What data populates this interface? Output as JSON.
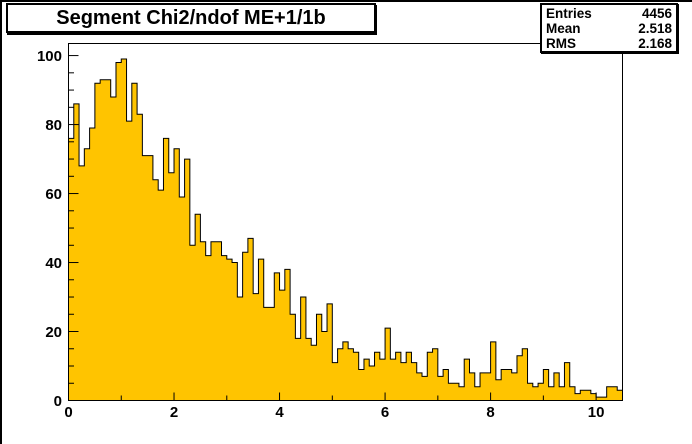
{
  "stats": {
    "rows": [
      {
        "label": "Entries",
        "value": "4456"
      },
      {
        "label": "Mean",
        "value": "2.518"
      },
      {
        "label": "RMS",
        "value": "2.168"
      }
    ]
  },
  "chart_data": {
    "type": "bar",
    "title": "Segment Chi2/ndof ME+1/1b",
    "xlabel": "",
    "ylabel": "",
    "x_start": 0,
    "bin_width": 0.1,
    "n_bins": 105,
    "xlim": [
      0,
      10.5
    ],
    "ylim": [
      0,
      103.5
    ],
    "x_tick_values": [
      0,
      2,
      4,
      6,
      8,
      10
    ],
    "x_tick_labels": [
      "0",
      "2",
      "4",
      "6",
      "8",
      "10"
    ],
    "x_minor_tick_step": 1,
    "y_tick_values": [
      0,
      20,
      40,
      60,
      80,
      100
    ],
    "y_tick_labels": [
      "0",
      "20",
      "40",
      "60",
      "80",
      "100"
    ],
    "y_minor_tick_step": 5,
    "grid": false,
    "legend_position": "none",
    "fill_color": "#ffc400",
    "line_color": "#000000",
    "frame_color": "#ffffff",
    "values": [
      76,
      86,
      68,
      73,
      79,
      92,
      93,
      93,
      88,
      98,
      99,
      81,
      92,
      83,
      71,
      71,
      64,
      61,
      76,
      66,
      73,
      59,
      70,
      45,
      54,
      46,
      42,
      46,
      46,
      42,
      41,
      40,
      30,
      43,
      47,
      31,
      41,
      27,
      27,
      37,
      32,
      38,
      25,
      18,
      30,
      18,
      16,
      25,
      20,
      28,
      11,
      15,
      17,
      15,
      14,
      9,
      12,
      10,
      14,
      12,
      21,
      12,
      14,
      11,
      14,
      11,
      8,
      7,
      14,
      15,
      7,
      9,
      5,
      5,
      4,
      12,
      8,
      4,
      8,
      8,
      17,
      6,
      9,
      9,
      8,
      13,
      15,
      5,
      4,
      5,
      9,
      4,
      8,
      4,
      11,
      4,
      2,
      3,
      3,
      2,
      1,
      1,
      4,
      4,
      3
    ]
  }
}
